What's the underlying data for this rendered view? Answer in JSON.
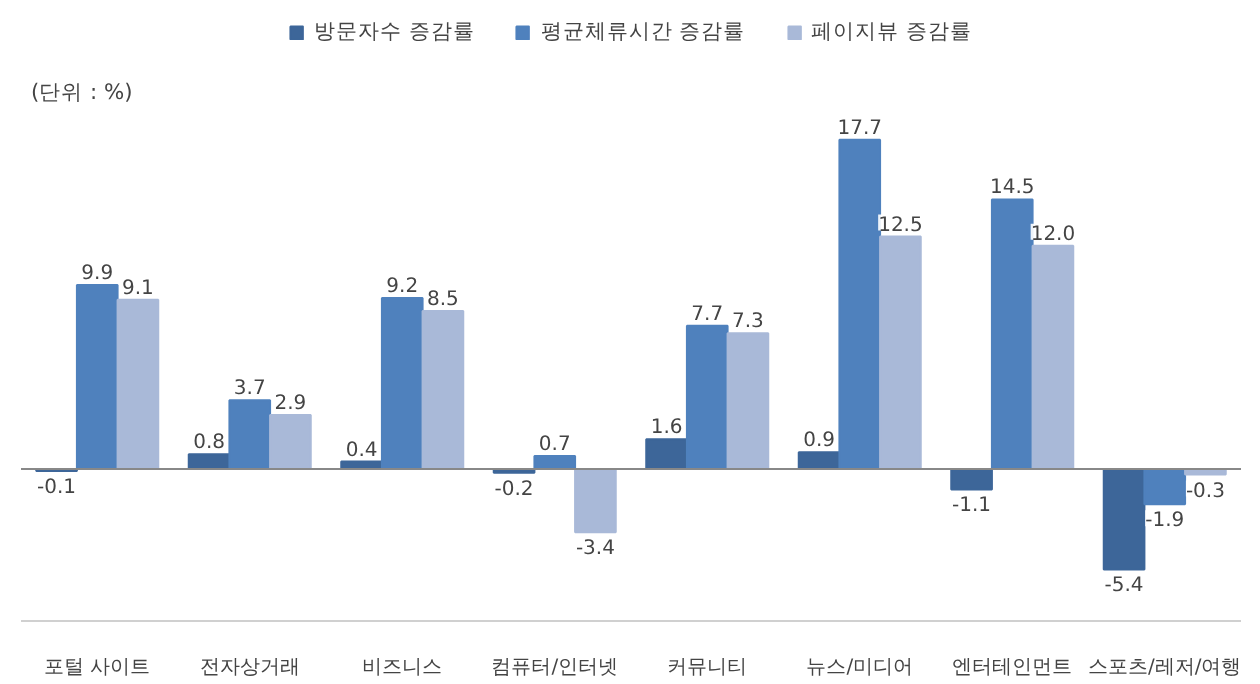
{
  "chart_data": {
    "type": "bar",
    "annotations": [
      "(단위 : %)"
    ],
    "categories": [
      "포털 사이트",
      "전자상거래",
      "비즈니스",
      "컴퓨터/인터넷",
      "커뮤니티",
      "뉴스/미디어",
      "엔터테인먼트",
      "스포츠/레저/여행"
    ],
    "series": [
      {
        "name": "방문자수 증감률",
        "color": "#3d6699",
        "values": [
          -0.1,
          0.8,
          0.4,
          -0.2,
          1.6,
          0.9,
          -1.1,
          -5.4
        ],
        "value_labels": [
          "-0.1",
          "0.8",
          "0.4",
          "-0.2",
          "1.6",
          "0.9",
          "-1.1",
          "-5.4"
        ]
      },
      {
        "name": "평균체류시간 증감률",
        "color": "#4f81bd",
        "values": [
          9.9,
          3.7,
          9.2,
          0.7,
          7.7,
          17.7,
          14.5,
          -1.9
        ],
        "value_labels": [
          "9.9",
          "3.7",
          "9.2",
          "0.7",
          "7.7",
          "17.7",
          "14.5",
          "-1.9"
        ]
      },
      {
        "name": "페이지뷰 증감률",
        "color": "#a9b9d8",
        "values": [
          9.1,
          2.9,
          8.5,
          -3.4,
          7.3,
          12.5,
          12.0,
          -0.3
        ],
        "value_labels": [
          "9.1",
          "2.9",
          "8.5",
          "-3.4",
          "7.3",
          "12.5",
          "12.0",
          "-0.3"
        ]
      }
    ],
    "legend": "top",
    "tick_labels": "x"
  }
}
